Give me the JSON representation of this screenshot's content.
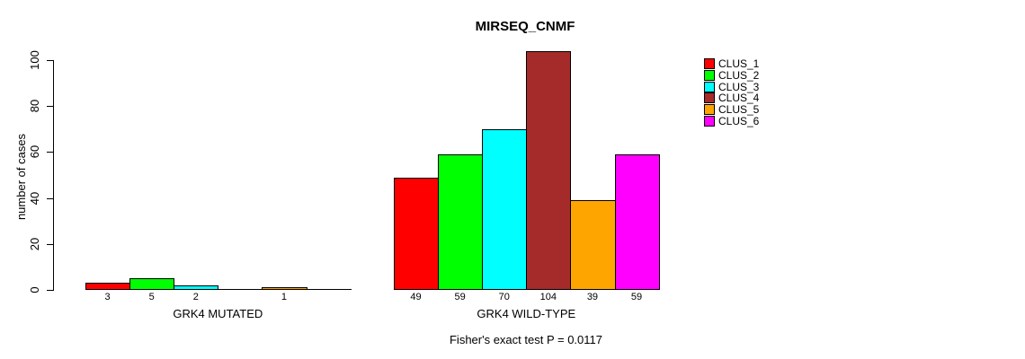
{
  "title": "MIRSEQ_CNMF",
  "y_axis": {
    "label": "number of cases",
    "ticks": [
      0,
      20,
      40,
      60,
      80,
      100
    ]
  },
  "legend": {
    "items": [
      {
        "label": "CLUS_1",
        "color": "#FF0000"
      },
      {
        "label": "CLUS_2",
        "color": "#00FF00"
      },
      {
        "label": "CLUS_3",
        "color": "#00FFFF"
      },
      {
        "label": "CLUS_4",
        "color": "#A52A2A"
      },
      {
        "label": "CLUS_5",
        "color": "#FFA500"
      },
      {
        "label": "CLUS_6",
        "color": "#FF00FF"
      }
    ]
  },
  "footnote": "Fisher's exact test P = 0.0117",
  "chart_data": {
    "type": "bar",
    "title": "MIRSEQ_CNMF",
    "xlabel": "",
    "ylabel": "number of cases",
    "ylim": [
      0,
      100
    ],
    "y_ticks": [
      0,
      20,
      40,
      60,
      80,
      100
    ],
    "grid": false,
    "legend_position": "right",
    "series": [
      "CLUS_1",
      "CLUS_2",
      "CLUS_3",
      "CLUS_4",
      "CLUS_5",
      "CLUS_6"
    ],
    "colors": [
      "#FF0000",
      "#00FF00",
      "#00FFFF",
      "#A52A2A",
      "#FFA500",
      "#FF00FF"
    ],
    "groups": [
      {
        "label": "GRK4 MUTATED",
        "values": [
          3,
          5,
          2,
          0,
          1,
          0
        ]
      },
      {
        "label": "GRK4 WILD-TYPE",
        "values": [
          49,
          59,
          70,
          104,
          39,
          59
        ]
      }
    ],
    "value_labels_shown_for_nonzero_bars": true,
    "annotation": "Fisher's exact test P = 0.0117"
  }
}
